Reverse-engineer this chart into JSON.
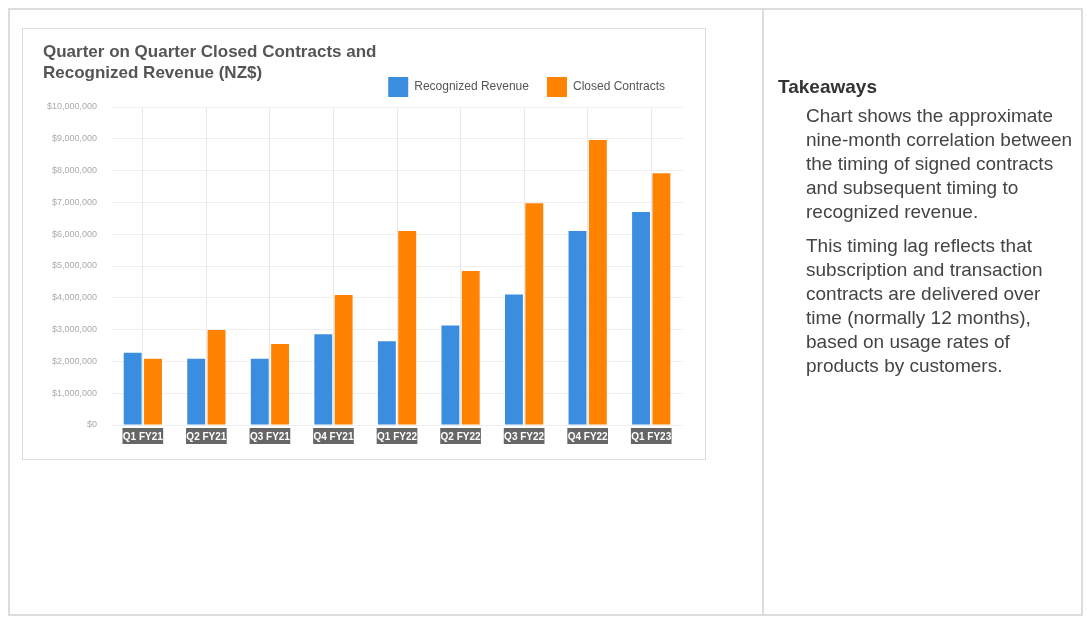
{
  "chart_data": {
    "type": "bar",
    "title": "Quarter on Quarter Closed Contracts and Recognized Revenue (NZ$)",
    "categories": [
      "Q1 FY21",
      "Q2 FY21",
      "Q3 FY21",
      "Q4 FY21",
      "Q1 FY22",
      "Q2 FY22",
      "Q3 FY22",
      "Q4 FY22",
      "Q1 FY23"
    ],
    "series": [
      {
        "name": "Recognized Revenue",
        "color": "#3a8ddf",
        "values": [
          2270000,
          2080000,
          2080000,
          2850000,
          2630000,
          3130000,
          4100000,
          6100000,
          6700000
        ]
      },
      {
        "name": "Closed Contracts",
        "color": "#ff8300",
        "values": [
          2080000,
          2990000,
          2550000,
          4090000,
          6100000,
          4840000,
          6970000,
          8960000,
          7920000
        ]
      }
    ],
    "ylim": [
      0,
      10000000
    ],
    "yticks": [
      {
        "value": 0,
        "label": "$0"
      },
      {
        "value": 1000000,
        "label": "$1,000,000"
      },
      {
        "value": 2000000,
        "label": "$2,000,000"
      },
      {
        "value": 3000000,
        "label": "$3,000,000"
      },
      {
        "value": 4000000,
        "label": "$4,000,000"
      },
      {
        "value": 5000000,
        "label": "$5,000,000"
      },
      {
        "value": 6000000,
        "label": "$6,000,000"
      },
      {
        "value": 7000000,
        "label": "$7,000,000"
      },
      {
        "value": 8000000,
        "label": "$8,000,000"
      },
      {
        "value": 9000000,
        "label": "$9,000,000"
      },
      {
        "value": 10000000,
        "label": "$10,000,000"
      }
    ],
    "grid": true,
    "legend": "top right",
    "annotations": [
      "Takeaways",
      "Chart shows the approximate nine-month correlation between the timing of signed contracts and subsequent timing to recognized revenue.",
      "This timing lag reflects that subscription and transaction contracts are delivered over time (normally 12 months), based on usage rates of products by customers."
    ]
  }
}
